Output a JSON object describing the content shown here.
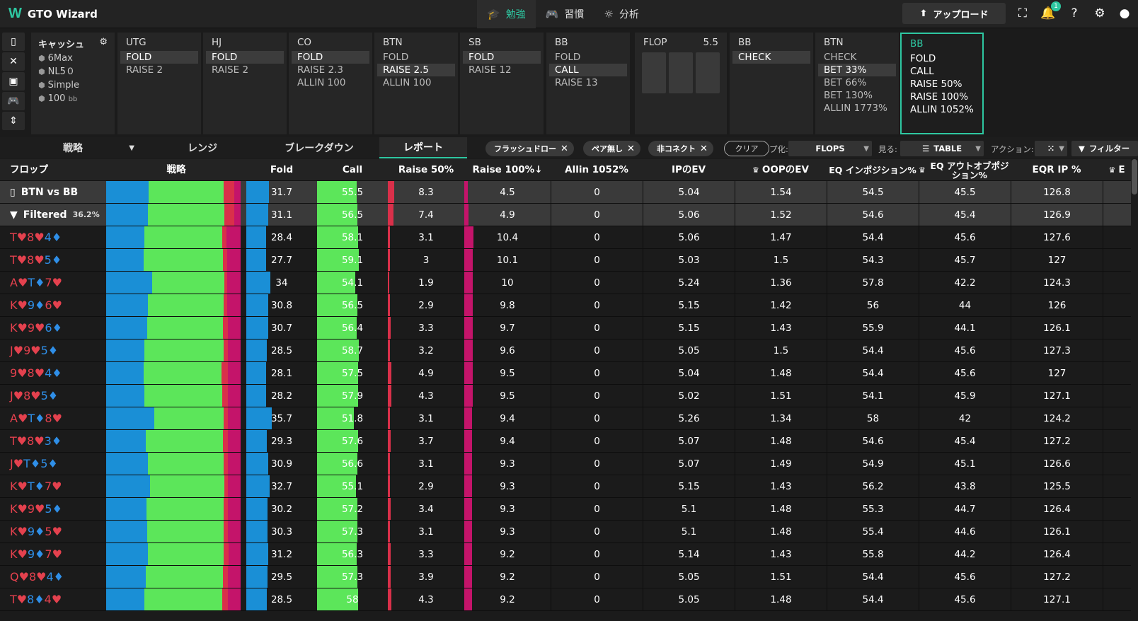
{
  "app": {
    "title": "GTO Wizard",
    "logo": "W"
  },
  "nav": {
    "tabs": [
      {
        "label": "勉強",
        "icon": "graduation-cap-icon",
        "active": true
      },
      {
        "label": "習慣",
        "icon": "gamepad-icon",
        "active": false
      },
      {
        "label": "分析",
        "icon": "lightbulb-icon",
        "active": false
      }
    ],
    "upload_label": "アップロード",
    "notification_count": "1"
  },
  "game": {
    "title": "キャッシュ",
    "lines": [
      "6Max",
      "NL5０",
      "Simple",
      "100"
    ],
    "stack_unit": "bb"
  },
  "positions": [
    {
      "title": "UTG",
      "options": [
        "FOLD",
        "RAISE 2"
      ],
      "selected": 0
    },
    {
      "title": "HJ",
      "options": [
        "FOLD",
        "RAISE 2"
      ],
      "selected": 0
    },
    {
      "title": "CO",
      "options": [
        "FOLD",
        "RAISE 2.3",
        "ALLIN 100"
      ],
      "selected": 0
    },
    {
      "title": "BTN",
      "options": [
        "FOLD",
        "RAISE 2.5",
        "ALLIN 100"
      ],
      "selected": 1
    },
    {
      "title": "SB",
      "options": [
        "FOLD",
        "RAISE 12"
      ],
      "selected": 0
    },
    {
      "title": "BB",
      "options": [
        "FOLD",
        "CALL",
        "RAISE 13"
      ],
      "selected": 1
    }
  ],
  "flop": {
    "label": "FLOP",
    "pot": "5.5"
  },
  "postflop": [
    {
      "title": "BB",
      "options": [
        "CHECK"
      ],
      "selected": 0
    },
    {
      "title": "BTN",
      "options": [
        "CHECK",
        "BET 33%",
        "BET 66%",
        "BET 130%",
        "ALLIN 1773%"
      ],
      "selected": 1
    },
    {
      "title": "BB",
      "options": [
        "FOLD",
        "CALL",
        "RAISE 50%",
        "RAISE 100%",
        "ALLIN 1052%"
      ],
      "selected": -1,
      "active": true
    }
  ],
  "subtabs": [
    "戦略",
    "レンジ",
    "ブレークダウン",
    "レポート"
  ],
  "filters": {
    "chips": [
      "フラッシュドロー",
      "ペア無し",
      "非コネクト"
    ],
    "clear": "クリア",
    "group_label": "プ化:",
    "group_value": "FLOPS",
    "view_label": "見る:",
    "view_value": "TABLE",
    "action_label": "アクション:",
    "filter_label": "フィルター"
  },
  "table": {
    "headers": [
      "フロップ",
      "戦略",
      "Fold",
      "Call",
      "Raise 50%",
      "Raise 100%↓",
      "Allin 1052%",
      "IPのEV",
      "OOPのEV",
      "EQ インポジション%",
      "EQ アウトオブポジション%",
      "EQR IP %",
      "E"
    ],
    "summary": [
      {
        "label": "BTN vs BB",
        "icon": "bookmark-icon",
        "pct": "",
        "fold": "31.7",
        "call": "55.5",
        "r50": "8.3",
        "r100": "4.5",
        "allin": "0",
        "ipev": "5.04",
        "oopev": "1.54",
        "eqip": "54.5",
        "eqoop": "45.5",
        "eqr": "126.8"
      },
      {
        "label": "Filtered",
        "icon": "filter-icon",
        "pct": "36.2%",
        "fold": "31.1",
        "call": "56.5",
        "r50": "7.4",
        "r100": "4.9",
        "allin": "0",
        "ipev": "5.06",
        "oopev": "1.52",
        "eqip": "54.6",
        "eqoop": "45.4",
        "eqr": "126.9"
      }
    ],
    "rows": [
      {
        "cards": [
          [
            "T",
            "♥",
            "r"
          ],
          [
            "8",
            "♥",
            "r"
          ],
          [
            "4",
            "♦",
            "b"
          ]
        ],
        "fold": "28.4",
        "call": "58.1",
        "r50": "3.1",
        "r100": "10.4",
        "allin": "0",
        "ipev": "5.06",
        "oopev": "1.47",
        "eqip": "54.4",
        "eqoop": "45.6",
        "eqr": "127.6"
      },
      {
        "cards": [
          [
            "T",
            "♥",
            "r"
          ],
          [
            "8",
            "♥",
            "r"
          ],
          [
            "5",
            "♦",
            "b"
          ]
        ],
        "fold": "27.7",
        "call": "59.1",
        "r50": "3",
        "r100": "10.1",
        "allin": "0",
        "ipev": "5.03",
        "oopev": "1.5",
        "eqip": "54.3",
        "eqoop": "45.7",
        "eqr": "127"
      },
      {
        "cards": [
          [
            "A",
            "♥",
            "r"
          ],
          [
            "T",
            "♦",
            "b"
          ],
          [
            "7",
            "♥",
            "r"
          ]
        ],
        "fold": "34",
        "call": "54.1",
        "r50": "1.9",
        "r100": "10",
        "allin": "0",
        "ipev": "5.24",
        "oopev": "1.36",
        "eqip": "57.8",
        "eqoop": "42.2",
        "eqr": "124.3"
      },
      {
        "cards": [
          [
            "K",
            "♥",
            "r"
          ],
          [
            "9",
            "♦",
            "b"
          ],
          [
            "6",
            "♥",
            "r"
          ]
        ],
        "fold": "30.8",
        "call": "56.5",
        "r50": "2.9",
        "r100": "9.8",
        "allin": "0",
        "ipev": "5.15",
        "oopev": "1.42",
        "eqip": "56",
        "eqoop": "44",
        "eqr": "126"
      },
      {
        "cards": [
          [
            "K",
            "♥",
            "r"
          ],
          [
            "9",
            "♥",
            "r"
          ],
          [
            "6",
            "♦",
            "b"
          ]
        ],
        "fold": "30.7",
        "call": "56.4",
        "r50": "3.3",
        "r100": "9.7",
        "allin": "0",
        "ipev": "5.15",
        "oopev": "1.43",
        "eqip": "55.9",
        "eqoop": "44.1",
        "eqr": "126.1"
      },
      {
        "cards": [
          [
            "J",
            "♥",
            "r"
          ],
          [
            "9",
            "♥",
            "r"
          ],
          [
            "5",
            "♦",
            "b"
          ]
        ],
        "fold": "28.5",
        "call": "58.7",
        "r50": "3.2",
        "r100": "9.6",
        "allin": "0",
        "ipev": "5.05",
        "oopev": "1.5",
        "eqip": "54.4",
        "eqoop": "45.6",
        "eqr": "127.3"
      },
      {
        "cards": [
          [
            "9",
            "♥",
            "r"
          ],
          [
            "8",
            "♥",
            "r"
          ],
          [
            "4",
            "♦",
            "b"
          ]
        ],
        "fold": "28.1",
        "call": "57.5",
        "r50": "4.9",
        "r100": "9.5",
        "allin": "0",
        "ipev": "5.04",
        "oopev": "1.48",
        "eqip": "54.4",
        "eqoop": "45.6",
        "eqr": "127"
      },
      {
        "cards": [
          [
            "J",
            "♥",
            "r"
          ],
          [
            "8",
            "♥",
            "r"
          ],
          [
            "5",
            "♦",
            "b"
          ]
        ],
        "fold": "28.2",
        "call": "57.9",
        "r50": "4.3",
        "r100": "9.5",
        "allin": "0",
        "ipev": "5.02",
        "oopev": "1.51",
        "eqip": "54.1",
        "eqoop": "45.9",
        "eqr": "127.1"
      },
      {
        "cards": [
          [
            "A",
            "♥",
            "r"
          ],
          [
            "T",
            "♦",
            "b"
          ],
          [
            "8",
            "♥",
            "r"
          ]
        ],
        "fold": "35.7",
        "call": "51.8",
        "r50": "3.1",
        "r100": "9.4",
        "allin": "0",
        "ipev": "5.26",
        "oopev": "1.34",
        "eqip": "58",
        "eqoop": "42",
        "eqr": "124.2"
      },
      {
        "cards": [
          [
            "T",
            "♥",
            "r"
          ],
          [
            "8",
            "♥",
            "r"
          ],
          [
            "3",
            "♦",
            "b"
          ]
        ],
        "fold": "29.3",
        "call": "57.6",
        "r50": "3.7",
        "r100": "9.4",
        "allin": "0",
        "ipev": "5.07",
        "oopev": "1.48",
        "eqip": "54.6",
        "eqoop": "45.4",
        "eqr": "127.2"
      },
      {
        "cards": [
          [
            "J",
            "♥",
            "r"
          ],
          [
            "T",
            "♦",
            "b"
          ],
          [
            "5",
            "♦",
            "b"
          ]
        ],
        "fold": "30.9",
        "call": "56.6",
        "r50": "3.1",
        "r100": "9.3",
        "allin": "0",
        "ipev": "5.07",
        "oopev": "1.49",
        "eqip": "54.9",
        "eqoop": "45.1",
        "eqr": "126.6"
      },
      {
        "cards": [
          [
            "K",
            "♥",
            "r"
          ],
          [
            "T",
            "♦",
            "b"
          ],
          [
            "7",
            "♥",
            "r"
          ]
        ],
        "fold": "32.7",
        "call": "55.1",
        "r50": "2.9",
        "r100": "9.3",
        "allin": "0",
        "ipev": "5.15",
        "oopev": "1.43",
        "eqip": "56.2",
        "eqoop": "43.8",
        "eqr": "125.5"
      },
      {
        "cards": [
          [
            "K",
            "♥",
            "r"
          ],
          [
            "9",
            "♥",
            "r"
          ],
          [
            "5",
            "♦",
            "b"
          ]
        ],
        "fold": "30.2",
        "call": "57.2",
        "r50": "3.4",
        "r100": "9.3",
        "allin": "0",
        "ipev": "5.1",
        "oopev": "1.48",
        "eqip": "55.3",
        "eqoop": "44.7",
        "eqr": "126.4"
      },
      {
        "cards": [
          [
            "K",
            "♥",
            "r"
          ],
          [
            "9",
            "♦",
            "b"
          ],
          [
            "5",
            "♥",
            "r"
          ]
        ],
        "fold": "30.3",
        "call": "57.3",
        "r50": "3.1",
        "r100": "9.3",
        "allin": "0",
        "ipev": "5.1",
        "oopev": "1.48",
        "eqip": "55.4",
        "eqoop": "44.6",
        "eqr": "126.1"
      },
      {
        "cards": [
          [
            "K",
            "♥",
            "r"
          ],
          [
            "9",
            "♦",
            "b"
          ],
          [
            "7",
            "♥",
            "r"
          ]
        ],
        "fold": "31.2",
        "call": "56.3",
        "r50": "3.3",
        "r100": "9.2",
        "allin": "0",
        "ipev": "5.14",
        "oopev": "1.43",
        "eqip": "55.8",
        "eqoop": "44.2",
        "eqr": "126.4"
      },
      {
        "cards": [
          [
            "Q",
            "♥",
            "r"
          ],
          [
            "8",
            "♥",
            "r"
          ],
          [
            "4",
            "♦",
            "b"
          ]
        ],
        "fold": "29.5",
        "call": "57.3",
        "r50": "3.9",
        "r100": "9.2",
        "allin": "0",
        "ipev": "5.05",
        "oopev": "1.51",
        "eqip": "54.4",
        "eqoop": "45.6",
        "eqr": "127.2"
      },
      {
        "cards": [
          [
            "T",
            "♥",
            "r"
          ],
          [
            "8",
            "♦",
            "b"
          ],
          [
            "4",
            "♥",
            "r"
          ]
        ],
        "fold": "28.5",
        "call": "58",
        "r50": "4.3",
        "r100": "9.2",
        "allin": "0",
        "ipev": "5.05",
        "oopev": "1.48",
        "eqip": "54.4",
        "eqoop": "45.6",
        "eqr": "127.1"
      }
    ],
    "colors": {
      "fold": "#1a8fd6",
      "call": "#5ce65a",
      "r50": "#d9304a",
      "r100": "#c4146a",
      "allin": "#8a0a3a"
    }
  }
}
